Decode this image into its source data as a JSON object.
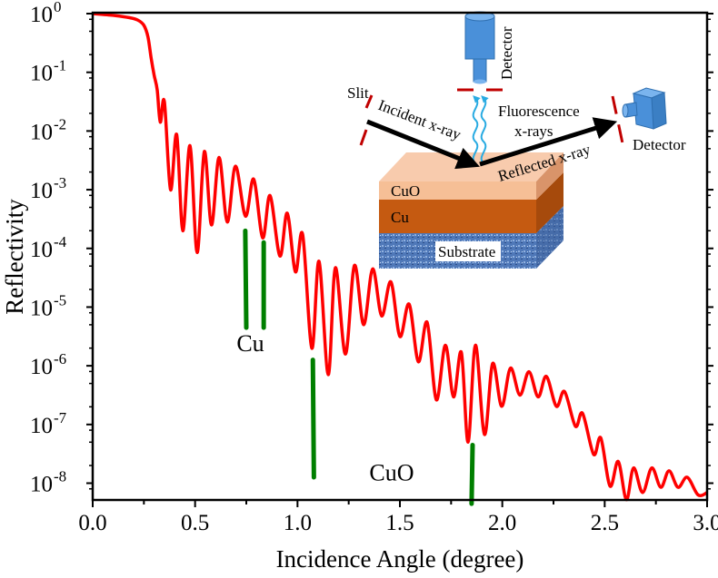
{
  "chart_data": {
    "type": "line",
    "title": "",
    "xlabel": "Incidence Angle (degree)",
    "ylabel": "Reflectivity",
    "xlim": [
      0,
      3.0
    ],
    "ylim_log10": [
      -8.3,
      0
    ],
    "yscale": "log",
    "grid": false,
    "x_ticks": [
      {
        "value": 0.0,
        "label": "0.0"
      },
      {
        "value": 0.5,
        "label": "0.5"
      },
      {
        "value": 1.0,
        "label": "1.0"
      },
      {
        "value": 1.5,
        "label": "1.5"
      },
      {
        "value": 2.0,
        "label": "2.0"
      },
      {
        "value": 2.5,
        "label": "2.5"
      },
      {
        "value": 3.0,
        "label": "3.0"
      }
    ],
    "y_ticks": [
      {
        "exp": 0,
        "base": "10",
        "sup": "0"
      },
      {
        "exp": -1,
        "base": "10",
        "sup": "-1"
      },
      {
        "exp": -2,
        "base": "10",
        "sup": "-2"
      },
      {
        "exp": -3,
        "base": "10",
        "sup": "-3"
      },
      {
        "exp": -4,
        "base": "10",
        "sup": "-4"
      },
      {
        "exp": -5,
        "base": "10",
        "sup": "-5"
      },
      {
        "exp": -6,
        "base": "10",
        "sup": "-6"
      },
      {
        "exp": -7,
        "base": "10",
        "sup": "-7"
      },
      {
        "exp": -8,
        "base": "10",
        "sup": "-8"
      }
    ],
    "series": [
      {
        "name": "Reflectivity",
        "color": "#ff0000",
        "x": [
          0.0,
          0.1,
          0.18,
          0.22,
          0.25,
          0.27,
          0.285,
          0.3,
          0.315,
          0.33,
          0.35,
          0.38,
          0.41,
          0.44,
          0.475,
          0.51,
          0.545,
          0.58,
          0.617,
          0.657,
          0.697,
          0.746,
          0.786,
          0.83,
          0.866,
          0.914,
          0.95,
          0.99,
          1.025,
          1.07,
          1.105,
          1.15,
          1.185,
          1.234,
          1.278,
          1.323,
          1.367,
          1.411,
          1.456,
          1.5,
          1.545,
          1.59,
          1.633,
          1.678,
          1.722,
          1.762,
          1.8,
          1.833,
          1.869,
          1.913,
          1.953,
          1.997,
          2.04,
          2.086,
          2.13,
          2.175,
          2.215,
          2.264,
          2.304,
          2.357,
          2.392,
          2.446,
          2.481,
          2.526,
          2.566,
          2.606,
          2.641,
          2.685,
          2.73,
          2.774,
          2.814,
          2.858,
          2.903,
          2.956,
          3.0
        ],
        "log10_y": [
          0.0,
          -0.03,
          -0.07,
          -0.11,
          -0.2,
          -0.4,
          -0.75,
          -1.05,
          -1.3,
          -1.85,
          -1.5,
          -3.0,
          -2.06,
          -3.7,
          -2.25,
          -4.07,
          -2.35,
          -3.6,
          -2.45,
          -3.55,
          -2.6,
          -3.45,
          -2.82,
          -3.82,
          -3.1,
          -4.13,
          -3.4,
          -4.4,
          -3.76,
          -5.7,
          -4.22,
          -6.15,
          -4.33,
          -5.8,
          -4.29,
          -5.3,
          -4.35,
          -5.15,
          -4.57,
          -5.5,
          -4.95,
          -5.93,
          -5.26,
          -6.58,
          -5.65,
          -6.53,
          -5.77,
          -7.3,
          -5.65,
          -7.17,
          -5.96,
          -6.69,
          -6.04,
          -6.5,
          -6.1,
          -6.53,
          -6.18,
          -6.69,
          -6.44,
          -7.03,
          -6.81,
          -7.51,
          -7.23,
          -8.05,
          -7.63,
          -8.28,
          -7.74,
          -8.16,
          -7.74,
          -8.07,
          -7.79,
          -8.07,
          -7.9,
          -8.2,
          -8.16
        ]
      }
    ],
    "markers": [
      {
        "name": "Cu",
        "color": "#007f00",
        "x_top": 0.745,
        "x_bottom": 0.75,
        "log10_top": -3.7,
        "log10_bottom": -5.35
      },
      {
        "name": "Cu",
        "color": "#007f00",
        "x_top": 0.835,
        "x_bottom": 0.835,
        "log10_top": -3.9,
        "log10_bottom": -5.35
      },
      {
        "name": "CuO",
        "color": "#007f00",
        "x_top": 1.075,
        "x_bottom": 1.08,
        "log10_top": -5.9,
        "log10_bottom": -7.9
      },
      {
        "name": "CuO",
        "color": "#007f00",
        "x_top": 1.855,
        "x_bottom": 1.85,
        "log10_top": -7.35,
        "log10_bottom": -8.35
      }
    ],
    "annotations": [
      {
        "text": "Cu",
        "x": 0.77,
        "log10_y": -5.75
      },
      {
        "text": "CuO",
        "x": 1.46,
        "log10_y": -7.95
      }
    ],
    "inset_schematic": {
      "labels": {
        "slit": "Slit",
        "incident": "Incident x-ray",
        "fluorescence_1": "Fluorescence",
        "fluorescence_2": "x-rays",
        "reflected": "Reflected x-ray",
        "detector_top": "Detector",
        "detector_right": "Detector",
        "layer_cuo": "CuO",
        "layer_cu": "Cu",
        "layer_substrate": "Substrate"
      },
      "colors": {
        "cuo": "#f6bf96",
        "cuo_side": "#d9946a",
        "cu": "#c55a11",
        "cu_side": "#a64a0c",
        "substrate": "#4f78b8",
        "detector": "#4a90d9",
        "slit": "#c00000",
        "wave": "#29abe2",
        "arrow": "#000000"
      }
    }
  }
}
